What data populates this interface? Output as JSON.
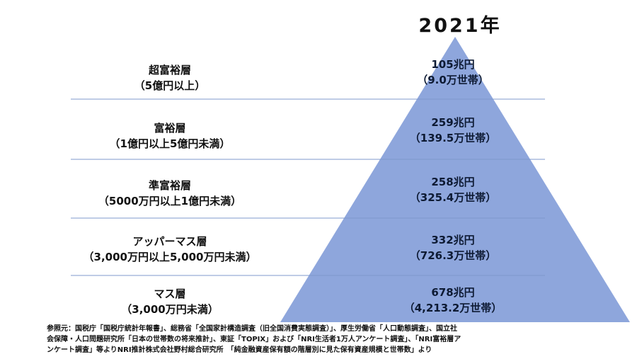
{
  "year": "2021年",
  "colors": {
    "pyramid": "#8ea6dc",
    "divider": "#7f98cc"
  },
  "tiers": [
    {
      "name": "超富裕層",
      "range": "（5億円以上）",
      "assets": "105兆円",
      "households": "（9.0万世帯）"
    },
    {
      "name": "富裕層",
      "range": "（1億円以上5億円未満）",
      "assets": "259兆円",
      "households": "（139.5万世帯）"
    },
    {
      "name": "準富裕層",
      "range": "（5000万円以上1億円未満）",
      "assets": "258兆円",
      "households": "（325.4万世帯）"
    },
    {
      "name": "アッパーマス層",
      "range": "（3,000万円以上5,000万円未満）",
      "assets": "332兆円",
      "households": "（726.3万世帯）"
    },
    {
      "name": "マス層",
      "range": "（3,000万円未満）",
      "assets": "678兆円",
      "households": "（4,213.2万世帯）"
    }
  ],
  "source": {
    "line1": "参照元：国税庁「国税庁統計年報書」、総務省「全国家計構造調査（旧全国消費実態調査）」、厚生労働省「人口動態調査」、国立社",
    "line2": "会保障・人口問題研究所「日本の世帯数の将来推計」、東証「TOPIX」および「NRI生活者1万人アンケート調査」、「NRI富裕層ア",
    "line3": "ンケート調査」等よりNRI推計株式会社野村総合研究所　「純金融資産保有額の階層別に見た保有資産規模と世帯数」より"
  }
}
